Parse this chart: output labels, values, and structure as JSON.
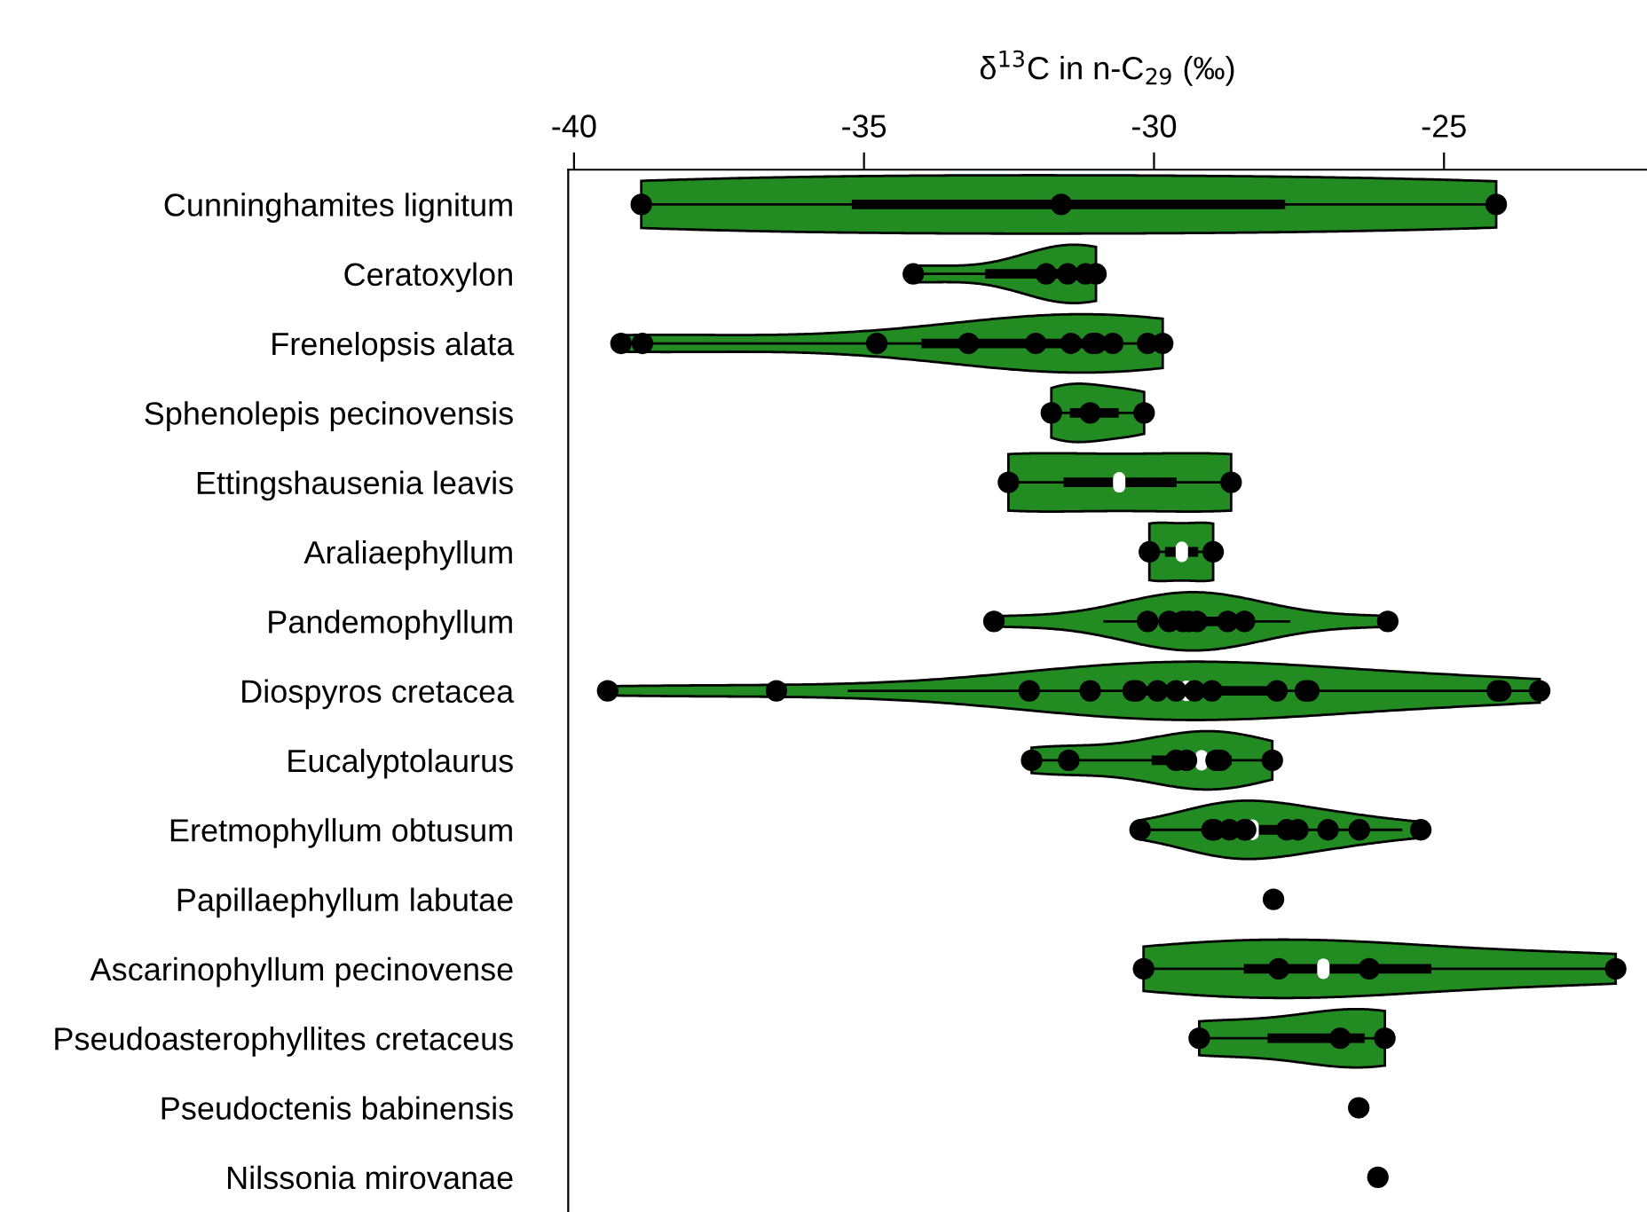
{
  "chart_data": {
    "type": "box",
    "orientation": "horizontal",
    "xlabel": "δ$^{13}$C in n-C$_{29}$ (‰)",
    "categories": [
      "Cunninghamites lignitum",
      "Ceratoxylon",
      "Frenelopsis alata",
      "Sphenolepis pecinovensis",
      "Ettingshausenia leavis",
      "Araliaephyllum",
      "Pandemophyllum",
      "Diospyros cretacea",
      "Eucalyptolaurus",
      "Eretmophyllum obtusum",
      "Papillaephyllum labutae",
      "Ascarinophyllum pecinovense",
      "Pseudoasterophyllites cretaceus",
      "Pseudoctenis babinensis",
      "Nilssonia mirovanae"
    ],
    "color": "#000000",
    "boxes": [
      {
        "low": -38.84,
        "q1": -35.2,
        "median": -31.6,
        "q3": -27.75,
        "high": -24.1
      },
      {
        "low": -34.15,
        "q1": -32.9,
        "median": -31.5,
        "q3": -31.1,
        "high": -31.0
      },
      {
        "low": -39.19,
        "q1": -34.0,
        "median": -31.4,
        "q3": -30.7,
        "high": -29.85
      },
      {
        "low": -31.77,
        "q1": -31.44,
        "median": -31.1,
        "q3": -30.62,
        "high": -30.17
      },
      {
        "low": -32.51,
        "q1": -31.55,
        "median": -30.6,
        "q3": -29.62,
        "high": -28.67
      },
      {
        "low": -30.08,
        "q1": -29.8,
        "median": -29.52,
        "q3": -29.25,
        "high": -28.98
      },
      {
        "low": -30.85,
        "q1": -29.9,
        "median": -29.5,
        "q3": -28.9,
        "high": -27.67
      },
      {
        "low": -35.26,
        "q1": -30.3,
        "median": -29.44,
        "q3": -27.9,
        "high": -23.35
      },
      {
        "low": -32.11,
        "q1": -30.03,
        "median": -29.18,
        "q3": -28.67,
        "high": -27.96
      },
      {
        "low": -30.24,
        "q1": -29.0,
        "median": -28.3,
        "q3": -27.5,
        "high": -25.74
      },
      null,
      {
        "low": -30.18,
        "q1": -28.44,
        "median": -27.08,
        "q3": -25.23,
        "high": -22.04
      },
      {
        "low": -29.22,
        "q1": -28.03,
        "median": -26.8,
        "q3": -26.38,
        "high": -26.02
      },
      null,
      null
    ],
    "series": [
      {
        "type": "scatter",
        "color": "#000000",
        "marker": "circle",
        "x": [
          "Cunninghamites lignitum",
          "Cunninghamites lignitum",
          "Cunninghamites lignitum",
          "Ceratoxylon",
          "Ceratoxylon",
          "Ceratoxylon",
          "Ceratoxylon",
          "Ceratoxylon",
          "Frenelopsis alata",
          "Frenelopsis alata",
          "Frenelopsis alata",
          "Frenelopsis alata",
          "Frenelopsis alata",
          "Frenelopsis alata",
          "Frenelopsis alata",
          "Frenelopsis alata",
          "Frenelopsis alata",
          "Frenelopsis alata",
          "Frenelopsis alata",
          "Sphenolepis pecinovensis",
          "Sphenolepis pecinovensis",
          "Sphenolepis pecinovensis",
          "Ettingshausenia leavis",
          "Ettingshausenia leavis",
          "Araliaephyllum",
          "Araliaephyllum",
          "Pandemophyllum",
          "Pandemophyllum",
          "Pandemophyllum",
          "Pandemophyllum",
          "Pandemophyllum",
          "Pandemophyllum",
          "Pandemophyllum",
          "Pandemophyllum",
          "Pandemophyllum",
          "Diospyros cretacea",
          "Diospyros cretacea",
          "Diospyros cretacea",
          "Diospyros cretacea",
          "Diospyros cretacea",
          "Diospyros cretacea",
          "Diospyros cretacea",
          "Diospyros cretacea",
          "Diospyros cretacea",
          "Diospyros cretacea",
          "Diospyros cretacea",
          "Diospyros cretacea",
          "Diospyros cretacea",
          "Diospyros cretacea",
          "Diospyros cretacea",
          "Diospyros cretacea",
          "Eucalyptolaurus",
          "Eucalyptolaurus",
          "Eucalyptolaurus",
          "Eucalyptolaurus",
          "Eucalyptolaurus",
          "Eucalyptolaurus",
          "Eucalyptolaurus",
          "Eretmophyllum obtusum",
          "Eretmophyllum obtusum",
          "Eretmophyllum obtusum",
          "Eretmophyllum obtusum",
          "Eretmophyllum obtusum",
          "Eretmophyllum obtusum",
          "Eretmophyllum obtusum",
          "Eretmophyllum obtusum",
          "Eretmophyllum obtusum",
          "Eretmophyllum obtusum",
          "Eretmophyllum obtusum",
          "Papillaephyllum labutae",
          "Ascarinophyllum pecinovense",
          "Ascarinophyllum pecinovense",
          "Ascarinophyllum pecinovense",
          "Ascarinophyllum pecinovense",
          "Pseudoasterophyllites cretaceus",
          "Pseudoasterophyllites cretaceus",
          "Pseudoasterophyllites cretaceus",
          "Pseudoctenis babinensis",
          "Nilssonia mirovanae"
        ],
        "values": [
          -38.84,
          -31.6,
          -24.1,
          -34.15,
          -31.86,
          -31.49,
          -31.18,
          -31.0,
          -39.19,
          -38.82,
          -34.78,
          -33.2,
          -32.04,
          -31.43,
          -31.06,
          -31.0,
          -30.71,
          -30.11,
          -29.85,
          -31.77,
          -31.1,
          -30.17,
          -32.51,
          -28.67,
          -30.08,
          -28.98,
          -32.76,
          -30.11,
          -29.74,
          -29.5,
          -29.4,
          -29.26,
          -28.73,
          -28.44,
          -25.97,
          -39.42,
          -36.51,
          -32.15,
          -31.1,
          -30.36,
          -30.3,
          -29.94,
          -29.62,
          -29.3,
          -29.0,
          -27.88,
          -27.39,
          -27.33,
          -24.08,
          -24.02,
          -23.35,
          -32.11,
          -31.47,
          -29.62,
          -29.44,
          -28.93,
          -28.85,
          -27.96,
          -30.24,
          -29.0,
          -28.96,
          -28.7,
          -28.44,
          -28.42,
          -27.71,
          -27.52,
          -27.0,
          -26.46,
          -25.4,
          -27.94,
          -30.18,
          -27.85,
          -26.29,
          -22.04,
          -29.22,
          -26.79,
          -26.02,
          -26.47,
          -26.14
        ]
      }
    ],
    "xlim": [
      -40.1,
      -21.5
    ],
    "xticks": [
      -40,
      -35,
      -30,
      -25
    ],
    "grid": false
  }
}
